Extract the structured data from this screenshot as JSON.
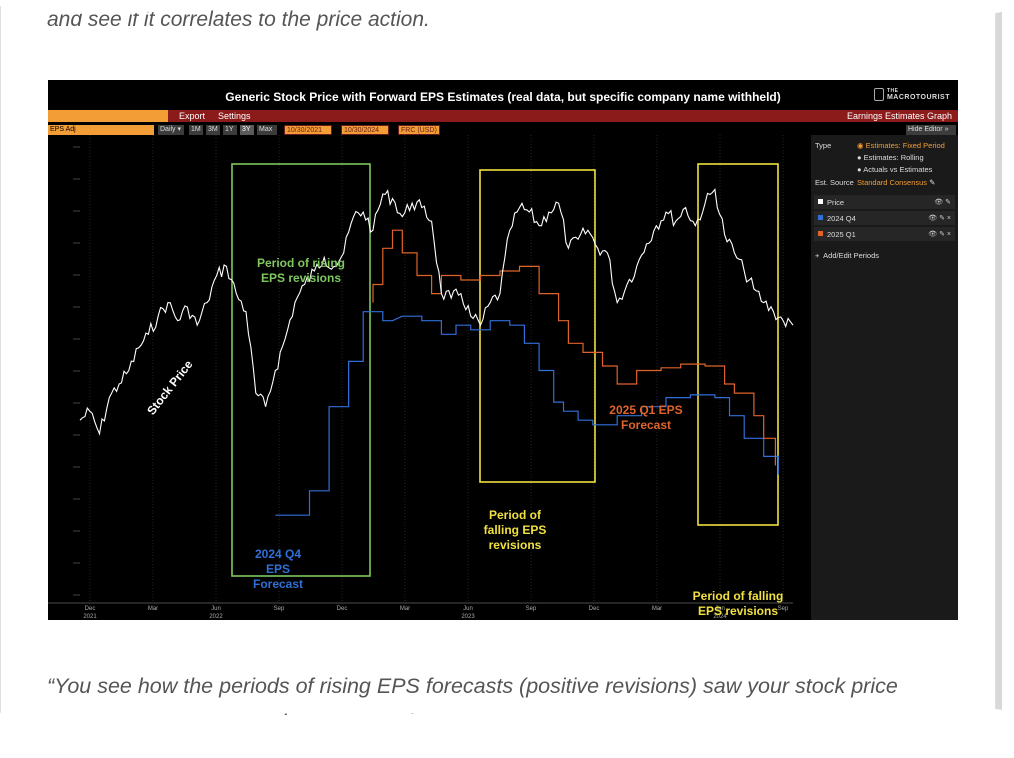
{
  "article": {
    "quote_top": "and see if it correlates to the price action.",
    "quote_line1": "“You see how the periods of rising EPS forecasts (positive revisions) saw your stock price",
    "quote_line2": "gain? And then look at what happened when revisions went negative: the stock price fell."
  },
  "terminal": {
    "title": "Generic Stock Price with Forward EPS Estimates (real data, but specific company name withheld)",
    "logo_small": "THE",
    "logo_text": "MACROTOURIST",
    "menu": {
      "export": "Export",
      "settings": "Settings",
      "right": "Earnings Estimates Graph"
    },
    "toolbar": {
      "field": "EPS Adj",
      "freq": "Daily",
      "ranges": [
        "1M",
        "3M",
        "1Y",
        "3Y",
        "Max"
      ],
      "selected_range": "3Y",
      "start_date": "10/30/2021",
      "end_date": "10/30/2024",
      "currency": "FRC (USD)",
      "hide_editor": "Hide Editor"
    },
    "side_panel": {
      "type_label": "Type",
      "type_options": [
        "Estimates: Fixed Period",
        "Estimates: Rolling",
        "Actuals vs Estimates"
      ],
      "est_source_label": "Est. Source",
      "est_source_value": "Standard Consensus",
      "series": [
        {
          "label": "Price",
          "color": "#ffffff"
        },
        {
          "label": "2024 Q4",
          "color": "#2f6fd8"
        },
        {
          "label": "2025 Q1",
          "color": "#e0642a"
        }
      ],
      "add_periods": "Add/Edit Periods"
    }
  },
  "chart_data": {
    "type": "line",
    "title": "Generic Stock Price with Forward EPS Estimates (real data, but specific company name withheld)",
    "x_ticks": [
      {
        "label": "Dec",
        "year": "2021"
      },
      {
        "label": "Mar"
      },
      {
        "label": "Jun",
        "year": "2022"
      },
      {
        "label": "Sep"
      },
      {
        "label": "Dec"
      },
      {
        "label": "Mar"
      },
      {
        "label": "Jun",
        "year": "2023"
      },
      {
        "label": "Sep"
      },
      {
        "label": "Dec"
      },
      {
        "label": "Mar"
      },
      {
        "label": "Jun",
        "year": "2024"
      },
      {
        "label": "Sep"
      }
    ],
    "x_range": [
      "2021-11",
      "2024-10"
    ],
    "series": [
      {
        "name": "Price",
        "color": "#ffffff",
        "points": [
          [
            0,
            160
          ],
          [
            10,
            170
          ],
          [
            20,
            145
          ],
          [
            30,
            185
          ],
          [
            40,
            200
          ],
          [
            50,
            215
          ],
          [
            60,
            240
          ],
          [
            70,
            255
          ],
          [
            80,
            275
          ],
          [
            90,
            290
          ],
          [
            100,
            270
          ],
          [
            110,
            285
          ],
          [
            120,
            265
          ],
          [
            130,
            290
          ],
          [
            140,
            320
          ],
          [
            150,
            330
          ],
          [
            160,
            300
          ],
          [
            170,
            280
          ],
          [
            180,
            190
          ],
          [
            190,
            175
          ],
          [
            200,
            215
          ],
          [
            210,
            250
          ],
          [
            220,
            290
          ],
          [
            230,
            310
          ],
          [
            240,
            325
          ],
          [
            250,
            340
          ],
          [
            260,
            330
          ],
          [
            270,
            345
          ],
          [
            280,
            385
          ],
          [
            290,
            390
          ],
          [
            300,
            370
          ],
          [
            310,
            410
          ],
          [
            320,
            405
          ],
          [
            330,
            385
          ],
          [
            340,
            400
          ],
          [
            350,
            395
          ],
          [
            360,
            380
          ],
          [
            370,
            300
          ],
          [
            380,
            295
          ],
          [
            390,
            300
          ],
          [
            400,
            275
          ],
          [
            410,
            265
          ],
          [
            420,
            290
          ],
          [
            430,
            300
          ],
          [
            440,
            370
          ],
          [
            450,
            395
          ],
          [
            460,
            390
          ],
          [
            470,
            375
          ],
          [
            480,
            390
          ],
          [
            490,
            400
          ],
          [
            500,
            350
          ],
          [
            510,
            360
          ],
          [
            520,
            370
          ],
          [
            530,
            350
          ],
          [
            540,
            345
          ],
          [
            550,
            290
          ],
          [
            560,
            310
          ],
          [
            570,
            330
          ],
          [
            580,
            355
          ],
          [
            590,
            375
          ],
          [
            600,
            390
          ],
          [
            610,
            380
          ],
          [
            620,
            395
          ],
          [
            630,
            375
          ],
          [
            640,
            400
          ],
          [
            650,
            415
          ],
          [
            660,
            365
          ],
          [
            670,
            345
          ],
          [
            680,
            325
          ],
          [
            690,
            305
          ],
          [
            700,
            290
          ],
          [
            710,
            280
          ],
          [
            720,
            270
          ],
          [
            730,
            265
          ]
        ]
      },
      {
        "name": "2024 Q4",
        "color": "#2f6fd8",
        "steps": [
          [
            200,
            55
          ],
          [
            235,
            55
          ],
          [
            235,
            82
          ],
          [
            255,
            82
          ],
          [
            255,
            175
          ],
          [
            275,
            175
          ],
          [
            275,
            225
          ],
          [
            290,
            225
          ],
          [
            290,
            280
          ],
          [
            310,
            280
          ],
          [
            310,
            270
          ],
          [
            320,
            270
          ],
          [
            330,
            275
          ],
          [
            350,
            275
          ],
          [
            350,
            270
          ],
          [
            370,
            270
          ],
          [
            370,
            255
          ],
          [
            385,
            255
          ],
          [
            385,
            265
          ],
          [
            400,
            265
          ],
          [
            400,
            260
          ],
          [
            420,
            260
          ],
          [
            420,
            270
          ],
          [
            440,
            270
          ],
          [
            440,
            265
          ],
          [
            455,
            265
          ],
          [
            455,
            245
          ],
          [
            470,
            245
          ],
          [
            470,
            215
          ],
          [
            485,
            215
          ],
          [
            485,
            180
          ],
          [
            495,
            180
          ],
          [
            495,
            170
          ],
          [
            510,
            170
          ],
          [
            510,
            160
          ],
          [
            525,
            160
          ],
          [
            525,
            155
          ],
          [
            550,
            155
          ],
          [
            550,
            165
          ],
          [
            575,
            165
          ],
          [
            575,
            175
          ],
          [
            600,
            175
          ],
          [
            600,
            185
          ],
          [
            625,
            185
          ],
          [
            625,
            188
          ],
          [
            650,
            188
          ],
          [
            650,
            185
          ],
          [
            665,
            185
          ],
          [
            665,
            165
          ],
          [
            680,
            165
          ],
          [
            680,
            140
          ],
          [
            700,
            140
          ],
          [
            700,
            120
          ],
          [
            715,
            120
          ],
          [
            715,
            100
          ]
        ]
      },
      {
        "name": "2025 Q1",
        "color": "#e0642a",
        "steps": [
          [
            300,
            290
          ],
          [
            300,
            310
          ],
          [
            310,
            310
          ],
          [
            310,
            350
          ],
          [
            320,
            350
          ],
          [
            320,
            370
          ],
          [
            330,
            370
          ],
          [
            330,
            345
          ],
          [
            345,
            345
          ],
          [
            345,
            320
          ],
          [
            360,
            320
          ],
          [
            360,
            300
          ],
          [
            370,
            300
          ],
          [
            370,
            320
          ],
          [
            390,
            320
          ],
          [
            390,
            315
          ],
          [
            410,
            315
          ],
          [
            410,
            320
          ],
          [
            430,
            320
          ],
          [
            430,
            325
          ],
          [
            450,
            325
          ],
          [
            450,
            330
          ],
          [
            470,
            330
          ],
          [
            470,
            300
          ],
          [
            490,
            300
          ],
          [
            490,
            270
          ],
          [
            500,
            270
          ],
          [
            500,
            245
          ],
          [
            515,
            245
          ],
          [
            515,
            235
          ],
          [
            535,
            235
          ],
          [
            535,
            220
          ],
          [
            550,
            220
          ],
          [
            550,
            200
          ],
          [
            570,
            200
          ],
          [
            570,
            215
          ],
          [
            595,
            215
          ],
          [
            595,
            218
          ],
          [
            615,
            218
          ],
          [
            615,
            222
          ],
          [
            640,
            222
          ],
          [
            640,
            220
          ],
          [
            660,
            220
          ],
          [
            660,
            200
          ],
          [
            670,
            200
          ],
          [
            670,
            190
          ],
          [
            690,
            190
          ],
          [
            690,
            165
          ],
          [
            700,
            165
          ],
          [
            700,
            140
          ],
          [
            712,
            140
          ],
          [
            712,
            110
          ]
        ]
      }
    ],
    "annotations": [
      {
        "text": "Stock Price",
        "color": "#ffffff"
      },
      {
        "text": "Period of rising",
        "text2": "EPS revisions",
        "color": "#7ec85e"
      },
      {
        "text": "2024 Q4",
        "text2": "EPS",
        "text3": "Forecast",
        "color": "#2f6fd8"
      },
      {
        "text": "Period of",
        "text2": "falling EPS",
        "text3": "revisions",
        "color": "#f0e040"
      },
      {
        "text": "2025 Q1 EPS",
        "text2": "Forecast",
        "color": "#e0642a"
      },
      {
        "text": "Period of falling",
        "text2": "EPS revisions",
        "color": "#f0e040"
      }
    ],
    "highlight_boxes": [
      {
        "label": "rising",
        "color": "#7ec85e"
      },
      {
        "label": "falling-1",
        "color": "#f0e040"
      },
      {
        "label": "falling-2",
        "color": "#f0e040"
      }
    ],
    "grid": true
  }
}
